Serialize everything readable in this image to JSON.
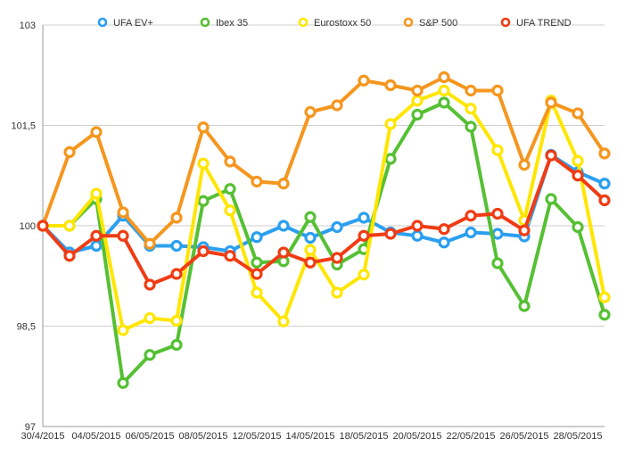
{
  "chart_data": {
    "type": "line",
    "title": "",
    "xlabel": "",
    "ylabel": "",
    "ylim": [
      97,
      103
    ],
    "yticks": [
      "97",
      "98,5",
      "100",
      "101,5",
      "103"
    ],
    "ytick_values": [
      97,
      98.5,
      100,
      101.5,
      103
    ],
    "grid": true,
    "legend_position": "top",
    "x": [
      "30/4/2015",
      "01/05/2015",
      "04/05/2015",
      "05/05/2015",
      "06/05/2015",
      "07/05/2015",
      "08/05/2015",
      "11/05/2015",
      "12/05/2015",
      "13/05/2015",
      "14/05/2015",
      "15/05/2015",
      "18/05/2015",
      "19/05/2015",
      "20/05/2015",
      "21/05/2015",
      "22/05/2015",
      "25/05/2015",
      "26/05/2015",
      "27/05/2015",
      "28/05/2015",
      "29/05/2015"
    ],
    "x_tick_labels": [
      "30/4/2015",
      "04/05/2015",
      "06/05/2015",
      "08/05/2015",
      "12/05/2015",
      "14/05/2015",
      "18/05/2015",
      "20/05/2015",
      "22/05/2015",
      "26/05/2015",
      "28/05/2015"
    ],
    "x_tick_indices": [
      0,
      2,
      4,
      6,
      8,
      10,
      12,
      14,
      16,
      18,
      20
    ],
    "series": [
      {
        "name": "UFA EV+",
        "color": "#2b9ff0",
        "values": [
          100.0,
          99.6,
          99.7,
          100.15,
          99.7,
          99.7,
          99.68,
          99.62,
          99.83,
          100.0,
          99.82,
          99.98,
          100.12,
          99.9,
          99.85,
          99.75,
          99.9,
          99.88,
          99.84,
          101.06,
          100.8,
          100.63
        ]
      },
      {
        "name": "Ibex 35",
        "color": "#55c033",
        "values": [
          100.0,
          100.0,
          100.4,
          97.65,
          98.07,
          98.22,
          100.37,
          100.55,
          99.45,
          99.47,
          100.13,
          99.42,
          99.65,
          101.0,
          101.66,
          101.84,
          101.48,
          99.44,
          98.8,
          100.4,
          99.98,
          98.67
        ]
      },
      {
        "name": "Eurostoxx 50",
        "color": "#ffe600",
        "values": [
          100.0,
          100.0,
          100.48,
          98.44,
          98.62,
          98.58,
          100.93,
          100.23,
          99.0,
          98.57,
          99.64,
          99.0,
          99.27,
          101.52,
          101.87,
          102.02,
          101.75,
          101.13,
          100.08,
          101.87,
          100.97,
          98.93
        ]
      },
      {
        "name": "S&P 500",
        "color": "#f5961e",
        "values": [
          100.0,
          101.1,
          101.4,
          100.2,
          99.73,
          100.12,
          101.47,
          100.96,
          100.66,
          100.63,
          101.7,
          101.8,
          102.17,
          102.1,
          102.02,
          102.22,
          102.02,
          102.02,
          100.91,
          101.84,
          101.68,
          101.08
        ]
      },
      {
        "name": "UFA TREND",
        "color": "#f03c14",
        "values": [
          100.0,
          99.55,
          99.85,
          99.85,
          99.12,
          99.28,
          99.62,
          99.55,
          99.28,
          99.6,
          99.45,
          99.52,
          99.85,
          99.88,
          100.0,
          99.95,
          100.15,
          100.18,
          99.93,
          101.05,
          100.75,
          100.38
        ]
      }
    ]
  }
}
